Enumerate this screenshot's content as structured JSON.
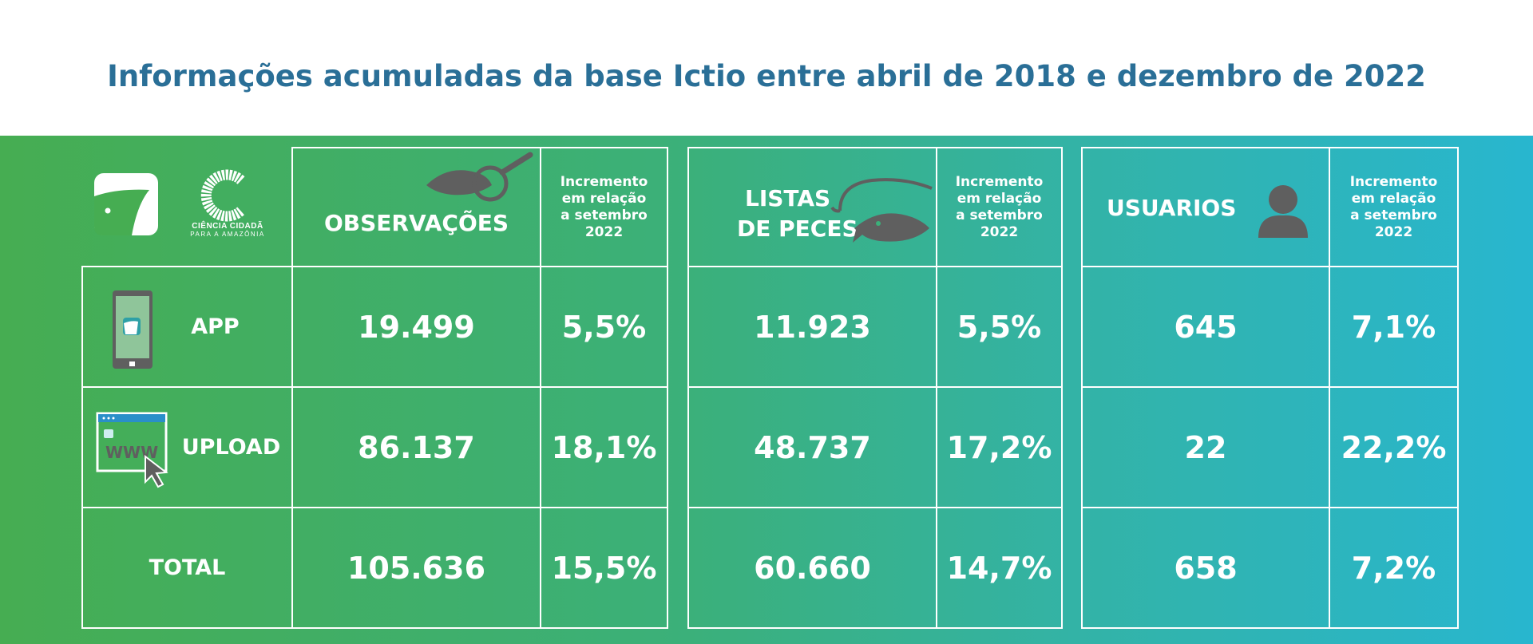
{
  "title": "Informações acumuladas da base Ictio  entre abril de 2018 e dezembro de 2022",
  "logos": {
    "ictio": "Ictio",
    "ciencia_line1": "CIÊNCIA CIDADÃ",
    "ciencia_line2": "PARA A AMAZÔNIA"
  },
  "increment_header": [
    "Incremento",
    "em relação",
    "a setembro",
    "2022"
  ],
  "row_labels": [
    "APP",
    "UPLOAD",
    "TOTAL"
  ],
  "observacoes": {
    "header": "OBSERVAÇÕES",
    "values": [
      "19.499",
      "86.137",
      "105.636"
    ],
    "increments": [
      "5,5%",
      "18,1%",
      "15,5%"
    ]
  },
  "listas": {
    "header_line1": "LISTAS",
    "header_line2": "DE PECES",
    "values": [
      "11.923",
      "48.737",
      "60.660"
    ],
    "increments": [
      "5,5%",
      "17,2%",
      "14,7%"
    ]
  },
  "usuarios": {
    "header": "USUARIOS",
    "values": [
      "645",
      "22",
      "658"
    ],
    "increments": [
      "7,1%",
      "22,2%",
      "7,2%"
    ]
  },
  "upload_icon_text": "WWW",
  "colors": {
    "title": "#2a6f97",
    "gradient_left": "#46ad52",
    "gradient_right": "#28b6cf",
    "icon_gray": "#5f5f5f"
  }
}
